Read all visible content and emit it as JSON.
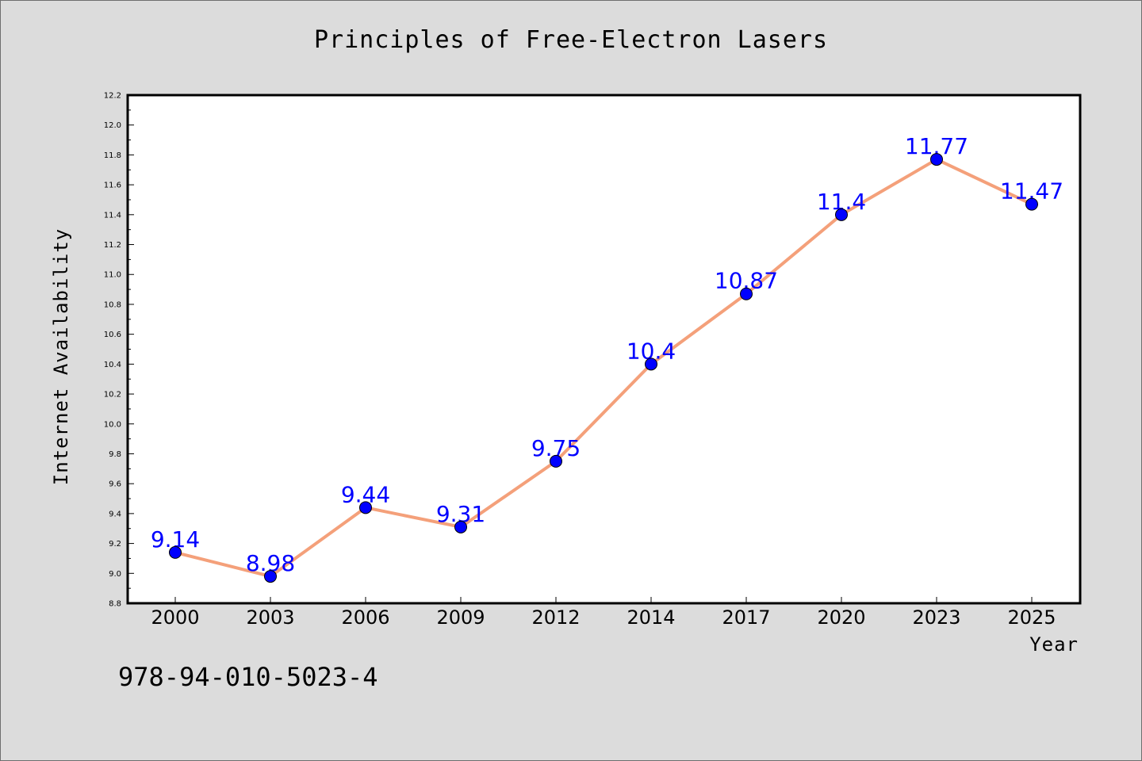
{
  "chart_data": {
    "type": "line",
    "title": "Principles of Free-Electron Lasers",
    "xlabel": "Year",
    "ylabel": "Internet Availability",
    "categories": [
      "2000",
      "2003",
      "2006",
      "2009",
      "2012",
      "2014",
      "2017",
      "2020",
      "2023",
      "2025"
    ],
    "values": [
      9.14,
      8.98,
      9.44,
      9.31,
      9.75,
      10.4,
      10.87,
      11.4,
      11.77,
      11.47
    ],
    "data_labels": [
      "9.14",
      "8.98",
      "9.44",
      "9.31",
      "9.75",
      "10.4",
      "10.87",
      "11.4",
      "11.77",
      "11.47"
    ],
    "ylim": [
      8.8,
      12.2
    ],
    "yticks": [
      "8.8",
      "9.0",
      "9.2",
      "9.4",
      "9.6",
      "9.8",
      "10.0",
      "10.2",
      "10.4",
      "10.6",
      "10.8",
      "11.0",
      "11.2",
      "11.4",
      "11.6",
      "11.8",
      "12.0",
      "12.2"
    ],
    "grid": false,
    "legend": "none",
    "line_color": "#f4a07a",
    "marker_color": "#0000ff",
    "label_color": "#0000ff"
  },
  "footer": {
    "isbn": "978-94-010-5023-4"
  }
}
